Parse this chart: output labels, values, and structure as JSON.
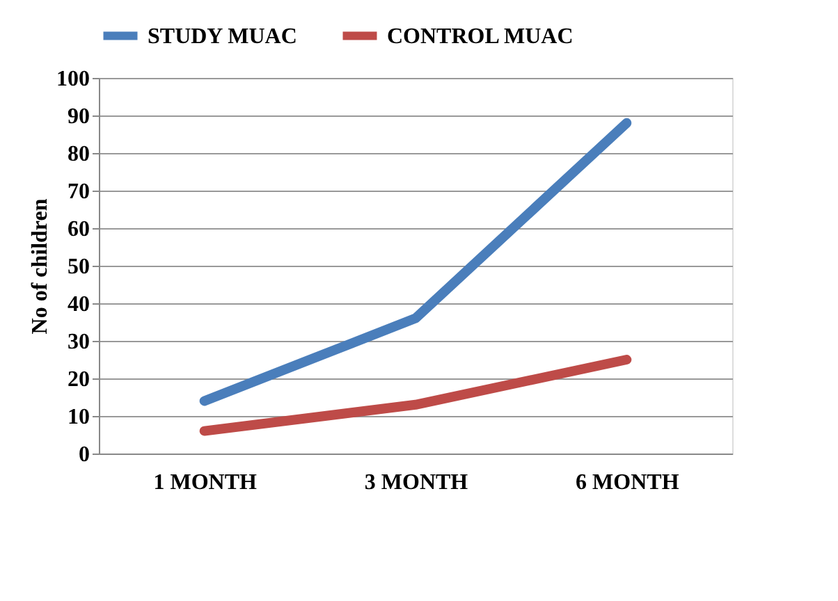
{
  "chart_data": {
    "type": "line",
    "ylabel": "No of children",
    "categories": [
      "1 MONTH",
      "3 MONTH",
      "6 MONTH"
    ],
    "series": [
      {
        "name": "STUDY MUAC",
        "color": "#4a7ebb",
        "values": [
          14,
          36,
          88
        ]
      },
      {
        "name": "CONTROL MUAC",
        "color": "#be4b48",
        "values": [
          6,
          13,
          25
        ]
      }
    ],
    "ylim": [
      0,
      100
    ],
    "yticks": [
      0,
      10,
      20,
      30,
      40,
      50,
      60,
      70,
      80,
      90,
      100
    ],
    "grid": "y",
    "legend": "top",
    "marker": "none",
    "line_style": "solid"
  }
}
